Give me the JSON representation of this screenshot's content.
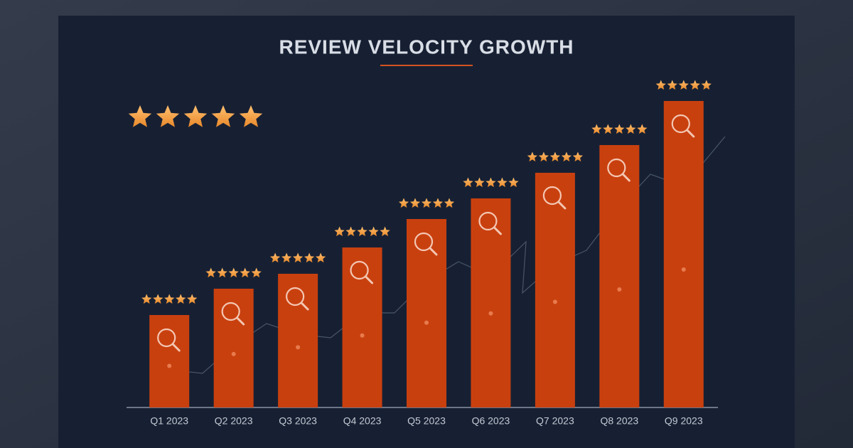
{
  "chart_data": {
    "type": "bar",
    "title": "REVIEW VELOCITY GROWTH",
    "categories": [
      "Q1 2023",
      "Q2 2023",
      "Q3 2023",
      "Q4 2023",
      "Q5 2023",
      "Q6 2023",
      "Q7 2023",
      "Q8 2023",
      "Q9 2023"
    ],
    "values": [
      130,
      167,
      188,
      225,
      265,
      294,
      330,
      369,
      431
    ],
    "color": "#c9400f",
    "ylim": [
      0,
      450
    ]
  }
}
